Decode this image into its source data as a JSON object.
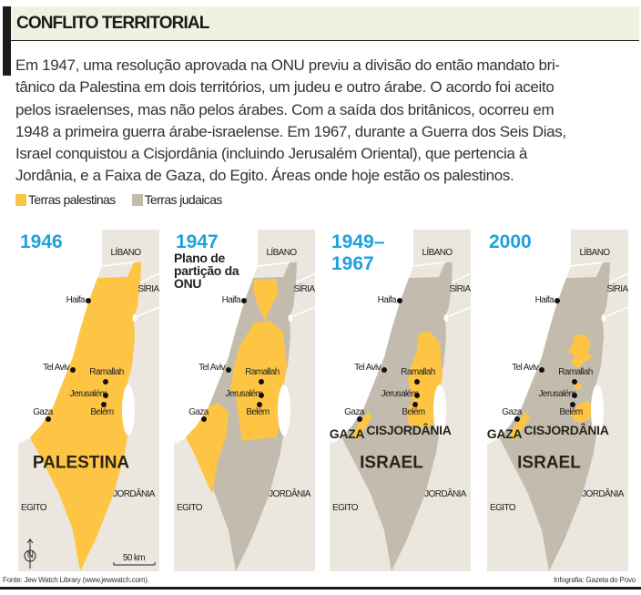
{
  "header": {
    "title": "CONFLITO TERRITORIAL"
  },
  "intro_lines": [
    "Em 1947, uma resolução aprovada na ONU previu a divisão do então mandato bri-",
    "tânico da Palestina em dois territórios, um judeu e outro árabe. O acordo foi aceito",
    "pelos israelenses, mas não pelos árabes. Com a saída dos britânicos, ocorreu em",
    "1948 a primeira guerra árabe-israelense. Em 1967, durante a Guerra dos Seis Dias,",
    "Israel conquistou a Cisjordânia (incluindo Jerusalém Oriental), que pertencia à",
    "Jordânia, e a Faixa de Gaza, do Egito. Áreas onde hoje estão os palestinos."
  ],
  "legend": [
    {
      "label": "Terras palestinas",
      "color": "#fdc543"
    },
    {
      "label": "Terras judaicas",
      "color": "#c3bcae"
    }
  ],
  "colors": {
    "palestinian": "#fdc543",
    "jewish": "#c3bcae",
    "neighbor": "#ebe7df",
    "year": "#1ea1dc"
  },
  "maps": [
    {
      "year": "1946",
      "subtitle": "",
      "labels": {
        "libano": "LÍBANO",
        "siria": "SÍRIA",
        "haifa": "Haifa",
        "tel_aviv": "Tel Aviv",
        "ramallah": "Ramallah",
        "jerusalem": "Jerusalém",
        "belem": "Belém",
        "gaza": "Gaza",
        "jordania": "JORDÂNIA",
        "egito": "EGITO",
        "region": "PALESTINA"
      },
      "north": "N",
      "scale": "50 km"
    },
    {
      "year": "1947",
      "subtitle": "Plano de partição da ONU",
      "labels": {
        "libano": "LÍBANO",
        "siria": "SÍRIA",
        "haifa": "Haifa",
        "tel_aviv": "Tel Aviv",
        "ramallah": "Ramallah",
        "jerusalem": "Jerusalém",
        "belem": "Belém",
        "gaza": "Gaza",
        "jordania": "JORDÂNIA",
        "egito": "EGITO"
      }
    },
    {
      "year": "1949–\n1967",
      "subtitle": "",
      "labels": {
        "libano": "LÍBANO",
        "siria": "SÍRIA",
        "haifa": "Haifa",
        "tel_aviv": "Tel Aviv",
        "ramallah": "Ramallah",
        "jerusalem": "Jerusalém",
        "belem": "Belém",
        "gaza": "Gaza",
        "jordania": "JORDÂNIA",
        "egito": "EGITO",
        "gaza_region": "GAZA",
        "cisjordania": "CISJORDÂNIA",
        "region": "ISRAEL"
      }
    },
    {
      "year": "2000",
      "subtitle": "",
      "labels": {
        "libano": "LÍBANO",
        "siria": "SÍRIA",
        "haifa": "Haifa",
        "tel_aviv": "Tel Aviv",
        "ramallah": "Ramallah",
        "jerusalem": "Jerusalém",
        "belem": "Belém",
        "gaza": "Gaza",
        "jordania": "JORDÂNIA",
        "egito": "EGITO",
        "gaza_region": "GAZA",
        "cisjordania": "CISJORDÂNIA",
        "region": "ISRAEL"
      }
    }
  ],
  "footer": {
    "source": "Fonte: Jew Watch Library (www.jewwatch.com).",
    "credit": "Infografia: Gazeta do Povo"
  }
}
